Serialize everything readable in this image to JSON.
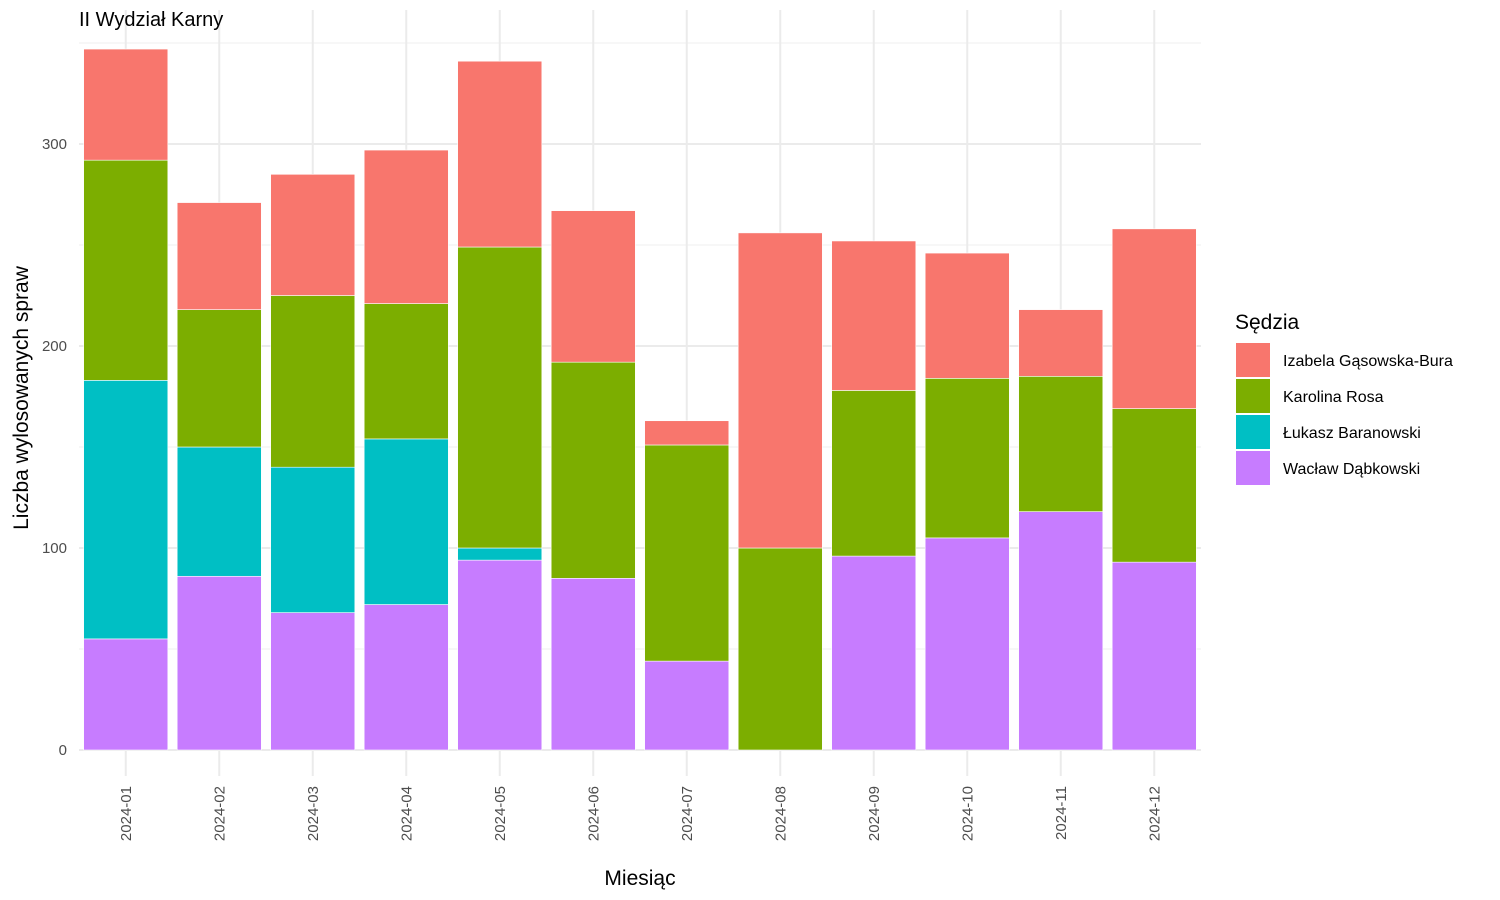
{
  "chart_data": {
    "type": "bar",
    "stacked": true,
    "title": "II Wydział Karny",
    "xlabel": "Miesiąc",
    "ylabel": "Liczba wylosowanych spraw",
    "ylim": [
      0,
      350
    ],
    "yticks": [
      0,
      100,
      200,
      300
    ],
    "grid": true,
    "legend_position": "right",
    "legend_title": "Sędzia",
    "categories": [
      "2024-01",
      "2024-02",
      "2024-03",
      "2024-04",
      "2024-05",
      "2024-06",
      "2024-07",
      "2024-08",
      "2024-09",
      "2024-10",
      "2024-11",
      "2024-12"
    ],
    "series": [
      {
        "name": "Wacław Dąbkowski",
        "color": "#C77CFF",
        "values": [
          55,
          86,
          68,
          72,
          94,
          85,
          44,
          0,
          96,
          105,
          118,
          93
        ]
      },
      {
        "name": "Łukasz Baranowski",
        "color": "#00BFC4",
        "values": [
          128,
          64,
          72,
          82,
          6,
          0,
          0,
          0,
          0,
          0,
          0,
          0
        ]
      },
      {
        "name": "Karolina Rosa",
        "color": "#7CAE00",
        "values": [
          109,
          68,
          85,
          67,
          149,
          107,
          107,
          100,
          82,
          79,
          67,
          76
        ]
      },
      {
        "name": "Izabela Gąsowska-Bura",
        "color": "#F8766D",
        "values": [
          55,
          53,
          60,
          76,
          92,
          75,
          12,
          156,
          74,
          62,
          33,
          89
        ]
      }
    ],
    "legend_order": [
      "Izabela Gąsowska-Bura",
      "Karolina Rosa",
      "Łukasz Baranowski",
      "Wacław Dąbkowski"
    ]
  }
}
